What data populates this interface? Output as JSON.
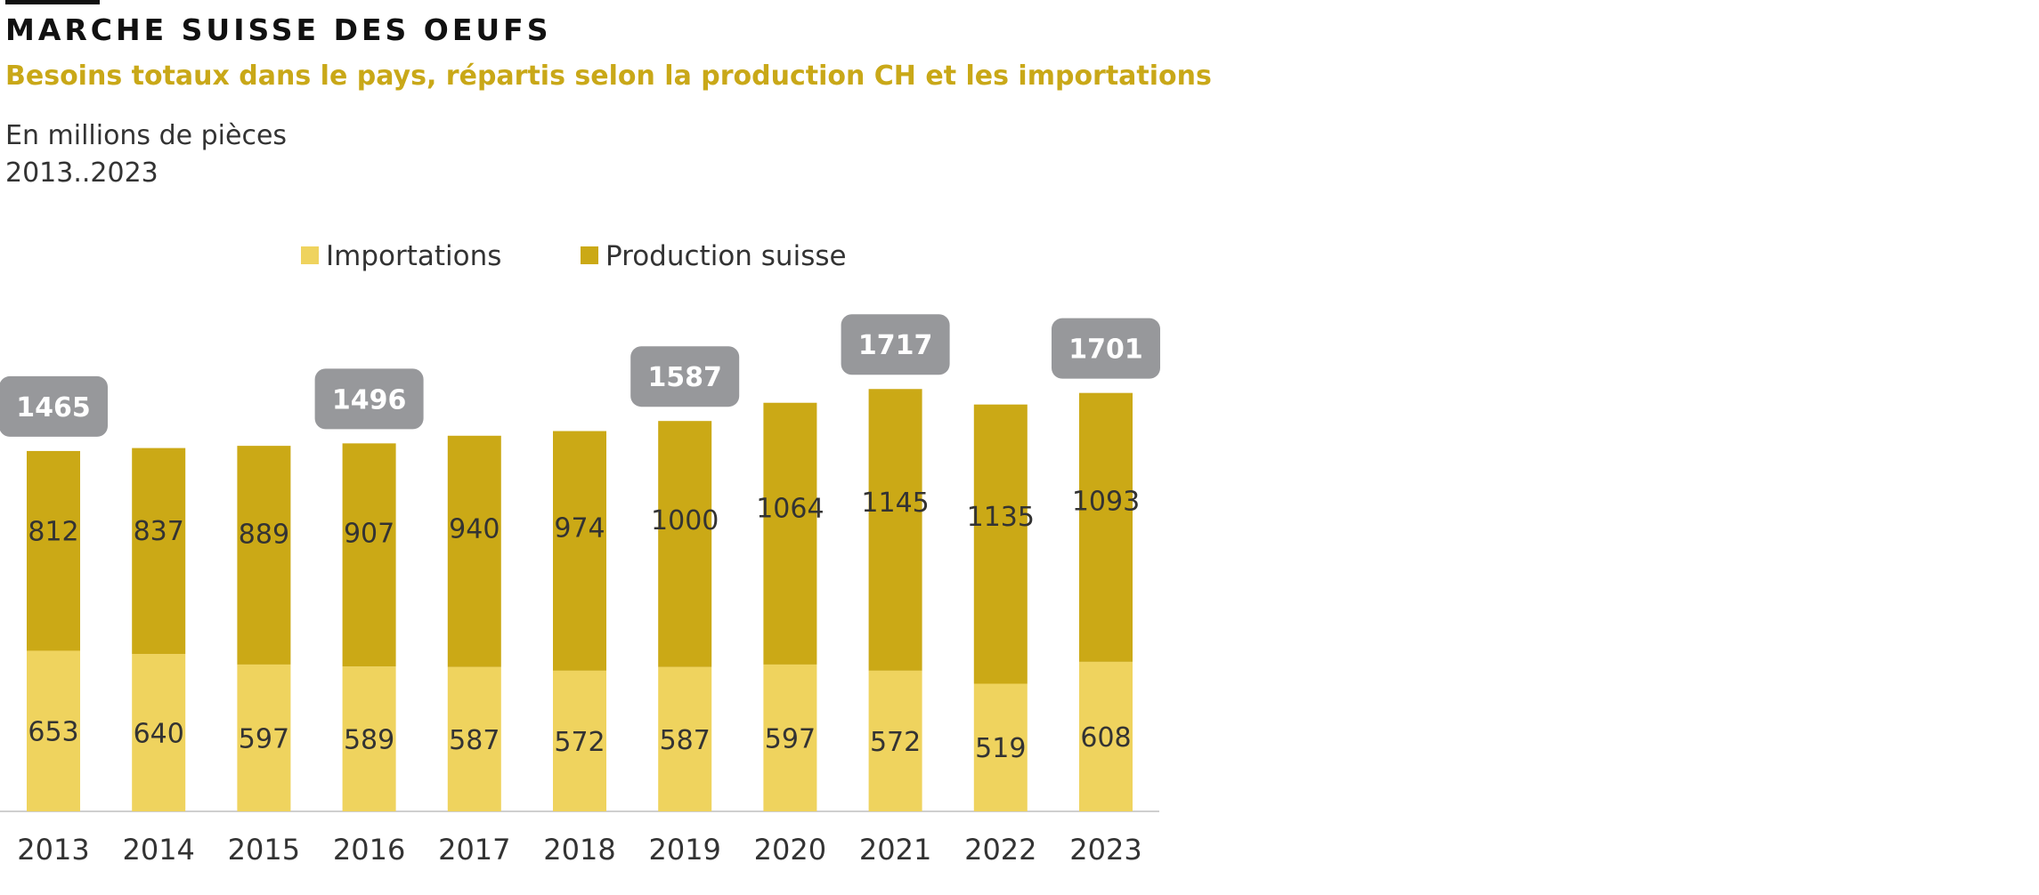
{
  "header": {
    "title": "MARCHE SUISSE DES OEUFS",
    "subtitle": "Besoins totaux dans le pays, répartis selon la production CH et les importations",
    "unit": "En millions de pièces",
    "period": "2013..2023"
  },
  "colors": {
    "imports": "#efd35e",
    "production": "#cba916",
    "total_badge": "#97989b",
    "accent": "#c9a818"
  },
  "chart_data": {
    "type": "bar",
    "stacked": true,
    "categories": [
      "2013",
      "2014",
      "2015",
      "2016",
      "2017",
      "2018",
      "2019",
      "2020",
      "2021",
      "2022",
      "2023"
    ],
    "series": [
      {
        "name": "Importations",
        "values": [
          653,
          640,
          597,
          589,
          587,
          572,
          587,
          597,
          572,
          519,
          608
        ]
      },
      {
        "name": "Production suisse",
        "values": [
          812,
          837,
          889,
          907,
          940,
          974,
          1000,
          1064,
          1145,
          1135,
          1093
        ]
      }
    ],
    "totals": [
      {
        "category": "2013",
        "value": 1465
      },
      {
        "category": "2016",
        "value": 1496
      },
      {
        "category": "2019",
        "value": 1587
      },
      {
        "category": "2021",
        "value": 1717
      },
      {
        "category": "2023",
        "value": 1701
      }
    ],
    "ylim": [
      0,
      1800
    ],
    "grid": false,
    "legend_position": "top"
  }
}
